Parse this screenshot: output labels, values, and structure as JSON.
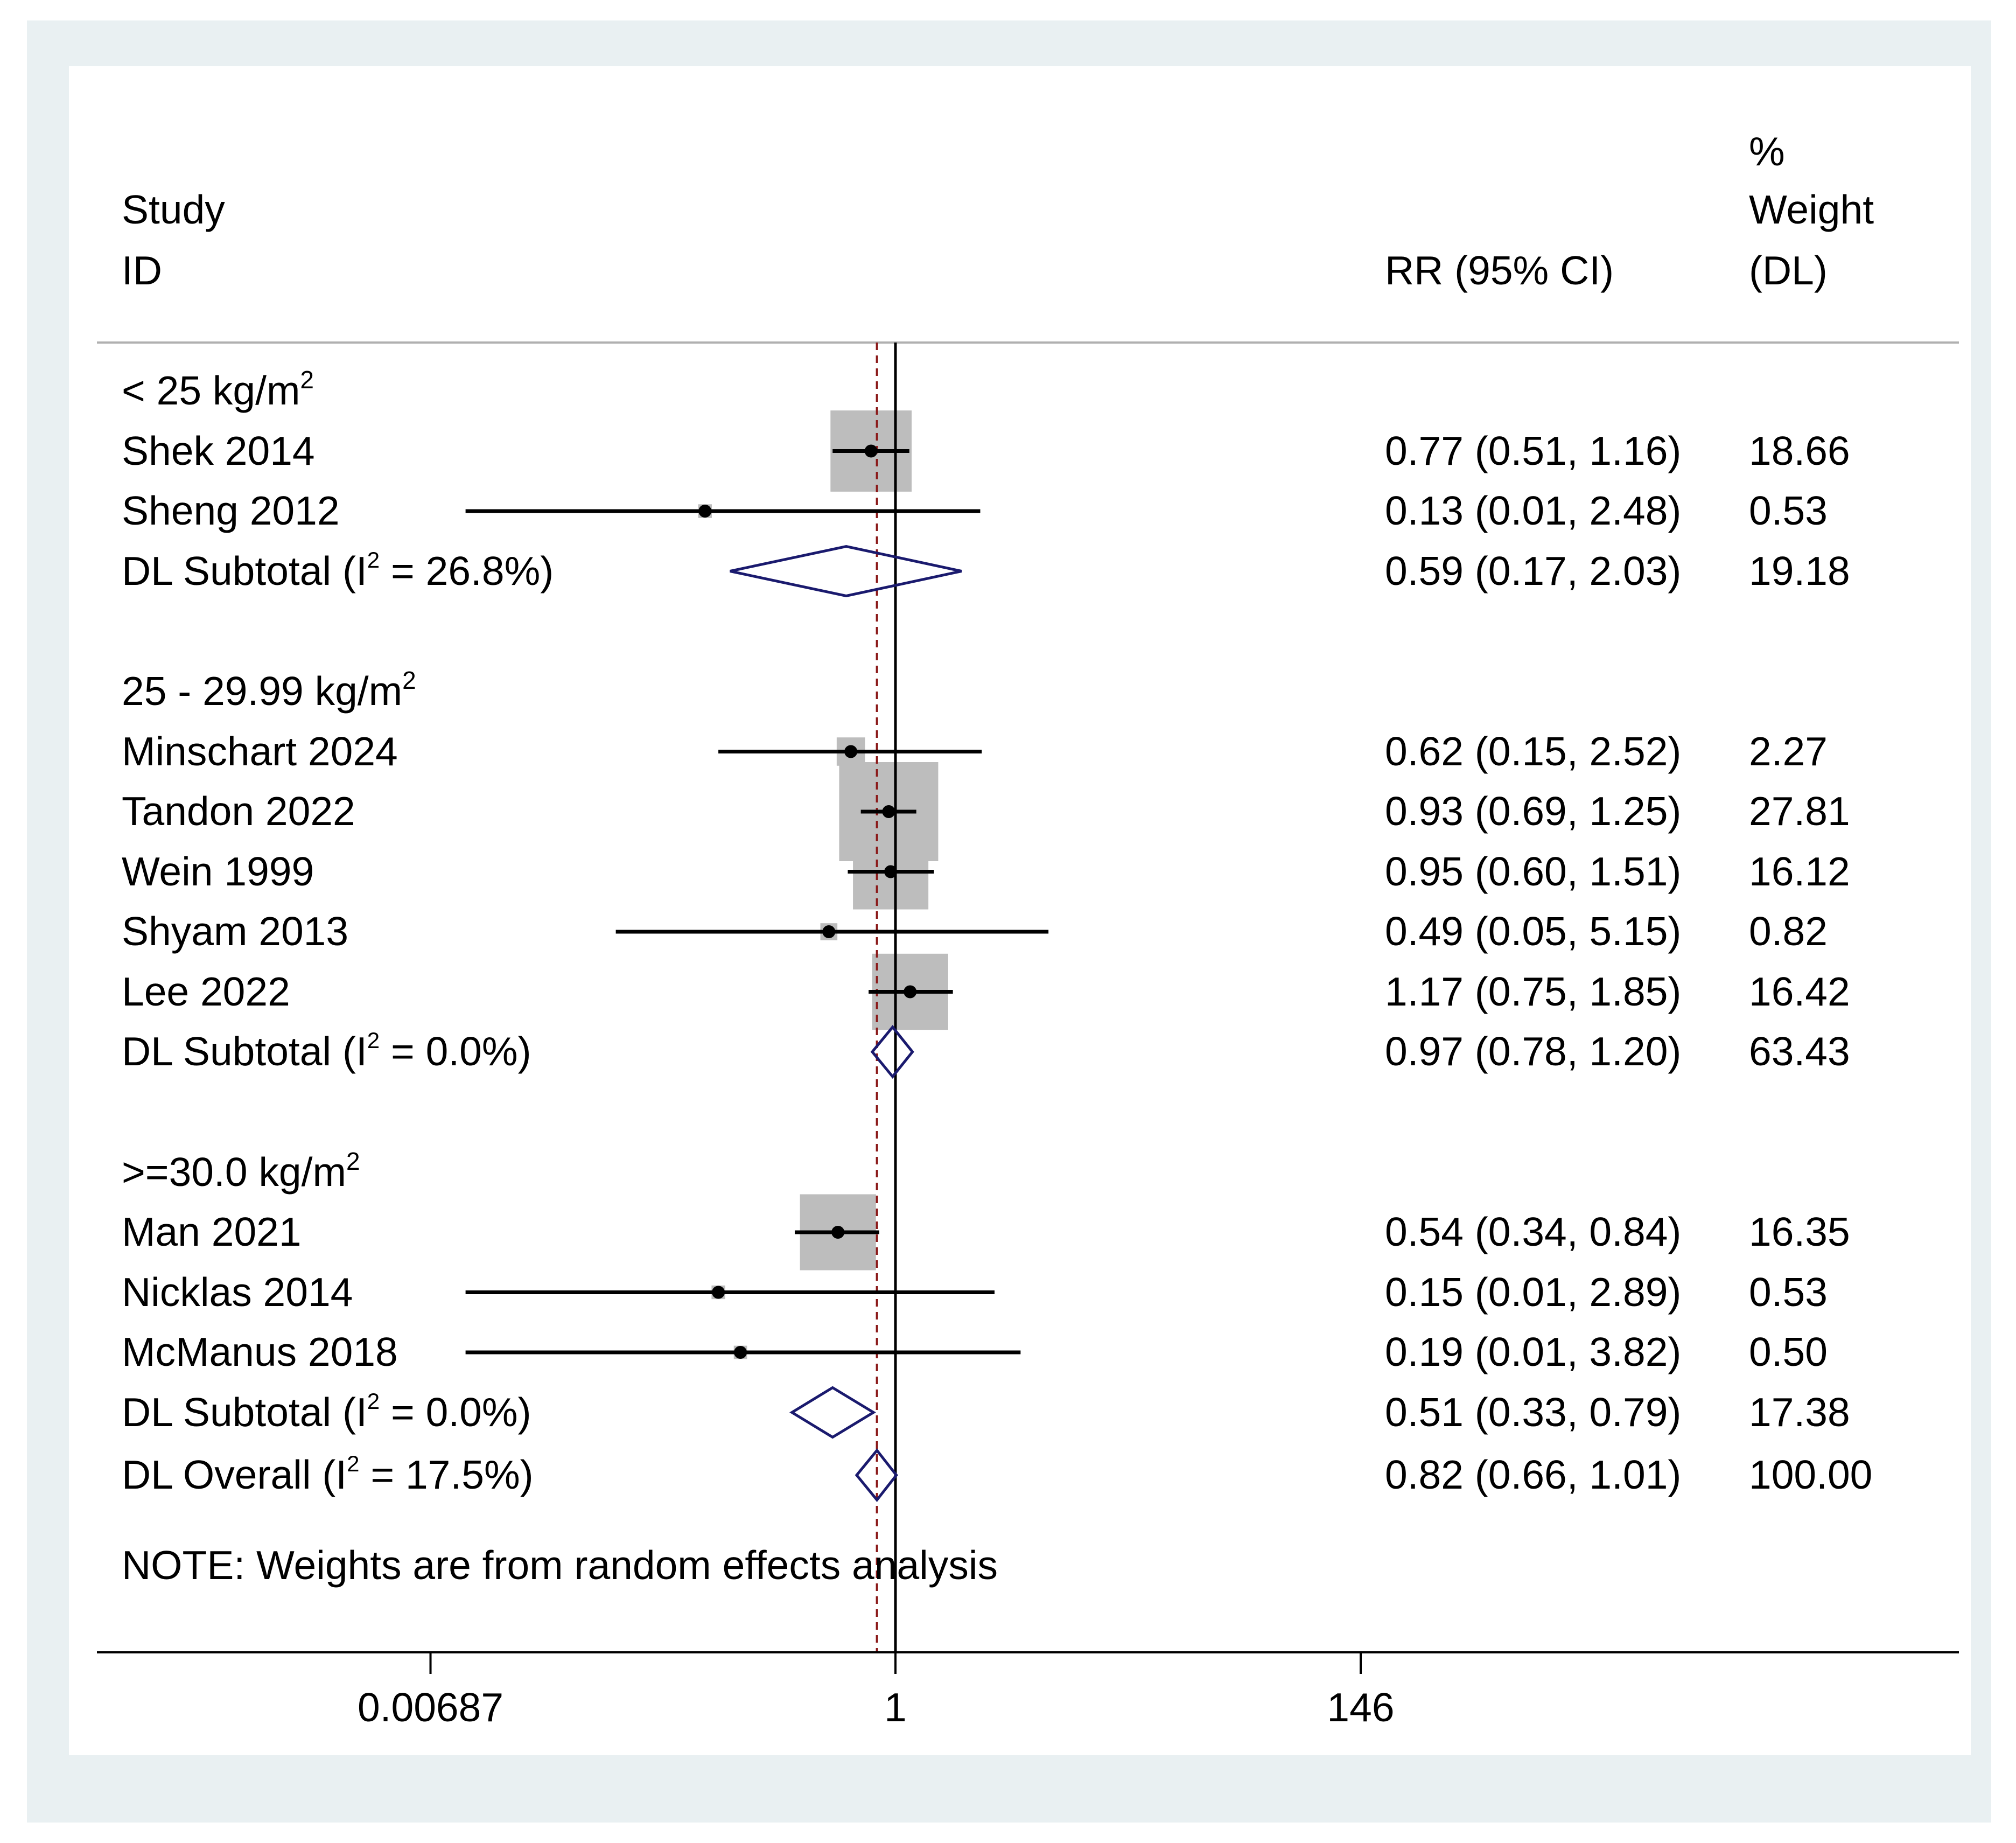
{
  "chart_data": {
    "type": "forest",
    "x_scale": "log",
    "reference_line": 1,
    "overall_line": 0.82,
    "xticks": [
      0.00687,
      1,
      146
    ],
    "xtick_labels": [
      "0.00687",
      "1",
      "146"
    ],
    "header": {
      "study_line1": "Study",
      "study_line2": "ID",
      "effect_label": "RR (95% CI)",
      "weight_line1": "%",
      "weight_line2": "Weight",
      "weight_line3": "(DL)"
    },
    "groups": [
      {
        "label": "< 25 kg/m",
        "label_sup": "2",
        "studies": [
          {
            "name": "Shek 2014",
            "rr": 0.77,
            "lo": 0.51,
            "hi": 1.16,
            "ci_text": "0.77 (0.51, 1.16)",
            "weight": "18.66"
          },
          {
            "name": "Sheng 2012",
            "rr": 0.13,
            "lo": 0.01,
            "hi": 2.48,
            "ci_text": "0.13 (0.01, 2.48)",
            "weight": "0.53"
          }
        ],
        "subtotal": {
          "prefix": "DL Subtotal  (I",
          "sup": "2",
          "suffix": " = 26.8%)",
          "rr": 0.59,
          "lo": 0.17,
          "hi": 2.03,
          "ci_text": "0.59 (0.17, 2.03)",
          "weight": "19.18"
        }
      },
      {
        "label": "25 - 29.99 kg/m",
        "label_sup": "2",
        "studies": [
          {
            "name": "Minschart 2024",
            "rr": 0.62,
            "lo": 0.15,
            "hi": 2.52,
            "ci_text": "0.62 (0.15, 2.52)",
            "weight": "2.27"
          },
          {
            "name": "Tandon 2022",
            "rr": 0.93,
            "lo": 0.69,
            "hi": 1.25,
            "ci_text": "0.93 (0.69, 1.25)",
            "weight": "27.81"
          },
          {
            "name": "Wein 1999",
            "rr": 0.95,
            "lo": 0.6,
            "hi": 1.51,
            "ci_text": "0.95 (0.60, 1.51)",
            "weight": "16.12"
          },
          {
            "name": "Shyam 2013",
            "rr": 0.49,
            "lo": 0.05,
            "hi": 5.15,
            "ci_text": "0.49 (0.05, 5.15)",
            "weight": "0.82"
          },
          {
            "name": "Lee 2022",
            "rr": 1.17,
            "lo": 0.75,
            "hi": 1.85,
            "ci_text": "1.17 (0.75, 1.85)",
            "weight": "16.42"
          }
        ],
        "subtotal": {
          "prefix": "DL Subtotal  (I",
          "sup": "2",
          "suffix": " = 0.0%)",
          "rr": 0.97,
          "lo": 0.78,
          "hi": 1.2,
          "ci_text": "0.97 (0.78, 1.20)",
          "weight": "63.43"
        }
      },
      {
        "label": ">=30.0 kg/m",
        "label_sup": "2",
        "studies": [
          {
            "name": "Man 2021",
            "rr": 0.54,
            "lo": 0.34,
            "hi": 0.84,
            "ci_text": "0.54 (0.34, 0.84)",
            "weight": "16.35"
          },
          {
            "name": "Nicklas 2014",
            "rr": 0.15,
            "lo": 0.01,
            "hi": 2.89,
            "ci_text": "0.15 (0.01, 2.89)",
            "weight": "0.53"
          },
          {
            "name": "McManus 2018",
            "rr": 0.19,
            "lo": 0.01,
            "hi": 3.82,
            "ci_text": "0.19 (0.01, 3.82)",
            "weight": "0.50"
          }
        ],
        "subtotal": {
          "prefix": "DL Subtotal  (I",
          "sup": "2",
          "suffix": " = 0.0%)",
          "rr": 0.51,
          "lo": 0.33,
          "hi": 0.79,
          "ci_text": "0.51 (0.33, 0.79)",
          "weight": "17.38"
        }
      }
    ],
    "overall": {
      "prefix": "DL Overall  (I",
      "sup": "2",
      "suffix": " = 17.5%)",
      "rr": 0.82,
      "lo": 0.66,
      "hi": 1.01,
      "ci_text": "0.82 (0.66, 1.01)",
      "weight": "100.00"
    },
    "note": "NOTE: Weights are from random effects analysis",
    "colors": {
      "outer_bg": "#e9f0f2",
      "panel_bg": "#ffffff",
      "box": "#bdbdbd",
      "line": "#000000",
      "diamond": "#1a1a6e",
      "overall_line": "#8b1a1a",
      "header_rule": "#b0b0b0"
    }
  }
}
